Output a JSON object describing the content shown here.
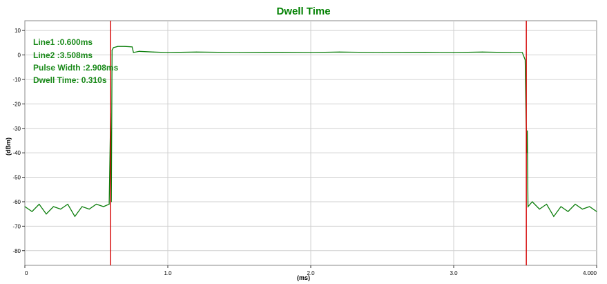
{
  "chart_data": {
    "type": "line",
    "title": "Dwell Time",
    "xlabel": "(ms)",
    "ylabel": "(dBm)",
    "xlim": [
      0,
      4.0
    ],
    "ylim": [
      -86,
      14
    ],
    "x_ticks": [
      {
        "value": 0,
        "label": "0"
      },
      {
        "value": 1.0,
        "label": "1.0"
      },
      {
        "value": 2.0,
        "label": "2.0"
      },
      {
        "value": 3.0,
        "label": "3.0"
      },
      {
        "value": 4.0,
        "label": "4.000"
      }
    ],
    "y_ticks": [
      {
        "value": 10,
        "label": "10"
      },
      {
        "value": 0,
        "label": "0"
      },
      {
        "value": -10,
        "label": "-10"
      },
      {
        "value": -20,
        "label": "-20"
      },
      {
        "value": -30,
        "label": "-30"
      },
      {
        "value": -40,
        "label": "-40"
      },
      {
        "value": -50,
        "label": "-50"
      },
      {
        "value": -60,
        "label": "-60"
      },
      {
        "value": -70,
        "label": "-70"
      },
      {
        "value": -80,
        "label": "-80"
      }
    ],
    "grid": true,
    "series": [
      {
        "color": "#0a7d0a",
        "points": [
          [
            0.0,
            -62
          ],
          [
            0.05,
            -64
          ],
          [
            0.1,
            -61
          ],
          [
            0.15,
            -65
          ],
          [
            0.2,
            -62
          ],
          [
            0.25,
            -63
          ],
          [
            0.3,
            -61
          ],
          [
            0.35,
            -66
          ],
          [
            0.4,
            -62
          ],
          [
            0.45,
            -63
          ],
          [
            0.5,
            -61
          ],
          [
            0.55,
            -62
          ],
          [
            0.59,
            -61
          ],
          [
            0.6,
            -24
          ],
          [
            0.605,
            -60
          ],
          [
            0.61,
            2
          ],
          [
            0.62,
            3
          ],
          [
            0.65,
            3.5
          ],
          [
            0.7,
            3.5
          ],
          [
            0.75,
            3.3
          ],
          [
            0.76,
            1
          ],
          [
            0.8,
            1.5
          ],
          [
            0.9,
            1.2
          ],
          [
            1.0,
            1.0
          ],
          [
            1.2,
            1.2
          ],
          [
            1.5,
            1.0
          ],
          [
            1.8,
            1.1
          ],
          [
            2.0,
            1.0
          ],
          [
            2.2,
            1.2
          ],
          [
            2.5,
            1.0
          ],
          [
            2.8,
            1.1
          ],
          [
            3.0,
            1.0
          ],
          [
            3.2,
            1.2
          ],
          [
            3.4,
            1.0
          ],
          [
            3.48,
            1.0
          ],
          [
            3.5,
            -2
          ],
          [
            3.51,
            -40
          ],
          [
            3.515,
            -31
          ],
          [
            3.52,
            -62
          ],
          [
            3.55,
            -60
          ],
          [
            3.6,
            -63
          ],
          [
            3.65,
            -61
          ],
          [
            3.7,
            -66
          ],
          [
            3.75,
            -62
          ],
          [
            3.8,
            -64
          ],
          [
            3.85,
            -61
          ],
          [
            3.9,
            -63
          ],
          [
            3.95,
            -62
          ],
          [
            4.0,
            -64
          ]
        ]
      }
    ],
    "markers": [
      {
        "name": "Line1",
        "x": 0.6,
        "color": "#d40000"
      },
      {
        "name": "Line2",
        "x": 3.508,
        "color": "#d40000"
      }
    ],
    "annotations": [
      "Line1 :0.600ms",
      "Line2 :3.508ms",
      "Pulse Width :2.908ms",
      "Dwell Time: 0.310s"
    ]
  }
}
